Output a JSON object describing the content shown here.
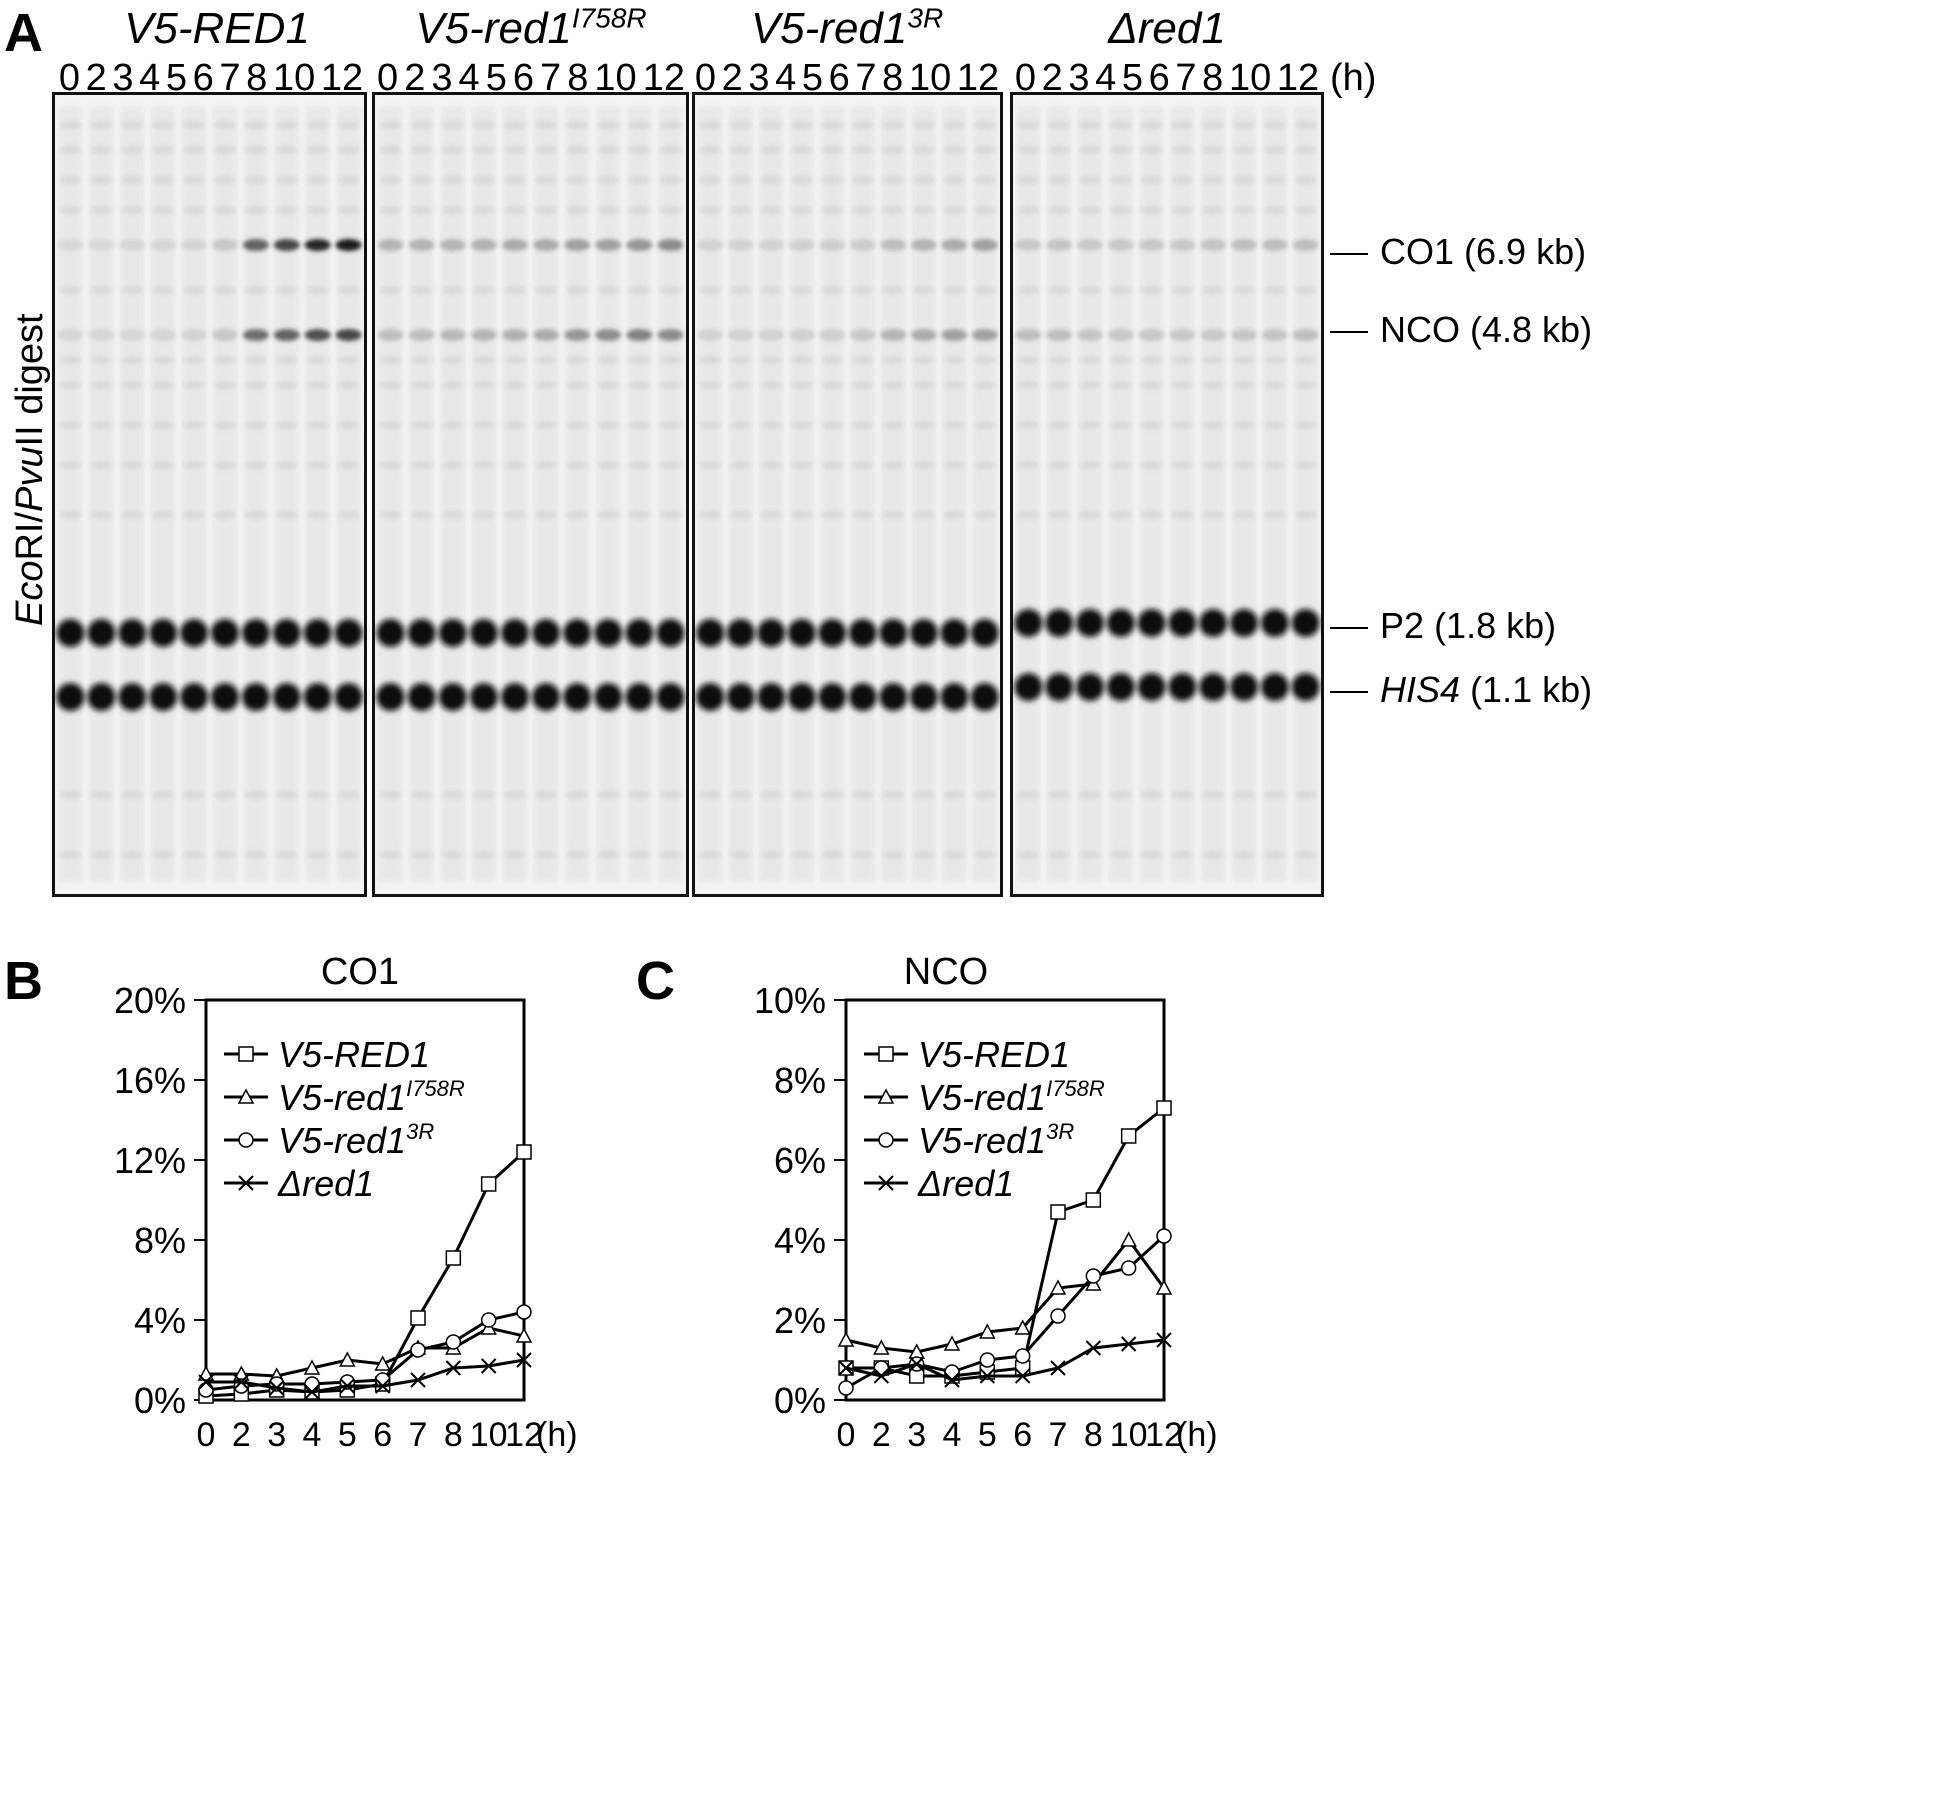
{
  "panel_a": {
    "letter": "A",
    "strains": [
      {
        "base": "V5-RED1",
        "sup": ""
      },
      {
        "base": "V5-red1",
        "sup": "I758R"
      },
      {
        "base": "V5-red1",
        "sup": "3R"
      },
      {
        "base": "Δred1",
        "sup": ""
      }
    ],
    "lanes": [
      "0",
      "2",
      "3",
      "4",
      "5",
      "6",
      "7",
      "8",
      "10",
      "12"
    ],
    "time_unit": "(h)",
    "side_label": {
      "part1": "Eco",
      "part2": "RI/",
      "part3": "Pvu",
      "part4": "II digest"
    },
    "bands": [
      {
        "name": "CO1",
        "size": "(6.9 kb)",
        "italic": false
      },
      {
        "name": "NCO",
        "size": "(4.8 kb)",
        "italic": false
      },
      {
        "name": "P2",
        "size": "(1.8 kb)",
        "italic": false
      },
      {
        "name": "HIS4",
        "size": "(1.1 kb)",
        "italic": true
      }
    ],
    "gel_intensity": {
      "co1": [
        [
          0.02,
          0.02,
          0.03,
          0.03,
          0.04,
          0.1,
          0.6,
          0.75,
          0.9,
          0.95
        ],
        [
          0.2,
          0.2,
          0.2,
          0.22,
          0.25,
          0.25,
          0.3,
          0.3,
          0.35,
          0.4
        ],
        [
          0.05,
          0.05,
          0.05,
          0.06,
          0.07,
          0.08,
          0.15,
          0.2,
          0.25,
          0.3
        ],
        [
          0.1,
          0.12,
          0.1,
          0.1,
          0.1,
          0.1,
          0.12,
          0.15,
          0.15,
          0.15
        ]
      ],
      "nco": [
        [
          0.03,
          0.03,
          0.03,
          0.04,
          0.05,
          0.1,
          0.55,
          0.6,
          0.7,
          0.75
        ],
        [
          0.15,
          0.15,
          0.18,
          0.2,
          0.22,
          0.25,
          0.35,
          0.4,
          0.45,
          0.4
        ],
        [
          0.05,
          0.05,
          0.05,
          0.06,
          0.07,
          0.1,
          0.2,
          0.25,
          0.3,
          0.3
        ],
        [
          0.15,
          0.15,
          0.12,
          0.1,
          0.1,
          0.1,
          0.1,
          0.12,
          0.12,
          0.15
        ]
      ]
    }
  },
  "panel_b": {
    "letter": "B",
    "title": "CO1",
    "y_ticks": [
      "20%",
      "16%",
      "12%",
      "8%",
      "4%",
      "0%"
    ],
    "x_ticks": [
      "0",
      "2",
      "3",
      "4",
      "5",
      "6",
      "7",
      "8",
      "10",
      "12"
    ],
    "x_unit": "(h)"
  },
  "panel_c": {
    "letter": "C",
    "title": "NCO",
    "y_ticks": [
      "10%",
      "8%",
      "6%",
      "4%",
      "2%",
      "0%"
    ],
    "x_ticks": [
      "0",
      "2",
      "3",
      "4",
      "5",
      "6",
      "7",
      "8",
      "10",
      "12"
    ],
    "x_unit": "(h)"
  },
  "chart_data": [
    {
      "type": "line",
      "title": "CO1",
      "xlabel": "(h)",
      "ylabel": "",
      "x": [
        0,
        2,
        3,
        4,
        5,
        6,
        7,
        8,
        10,
        12
      ],
      "ylim": [
        0,
        20
      ],
      "y_unit": "%",
      "legend_position": "top-left",
      "series": [
        {
          "name": "V5-RED1",
          "marker": "square",
          "values": [
            0.2,
            0.3,
            0.5,
            0.4,
            0.5,
            0.8,
            4.1,
            7.1,
            10.8,
            12.4
          ]
        },
        {
          "name": "V5-red1 I758R",
          "marker": "triangle",
          "values": [
            1.3,
            1.3,
            1.2,
            1.6,
            2.0,
            1.8,
            2.6,
            2.6,
            3.6,
            3.2
          ]
        },
        {
          "name": "V5-red1 3R",
          "marker": "circle",
          "values": [
            0.5,
            0.7,
            0.8,
            0.8,
            0.9,
            1.0,
            2.5,
            2.9,
            4.0,
            4.4
          ]
        },
        {
          "name": "Δred1",
          "marker": "x",
          "values": [
            0.9,
            0.9,
            0.6,
            0.4,
            0.7,
            0.7,
            1.0,
            1.6,
            1.7,
            2.0
          ]
        }
      ]
    },
    {
      "type": "line",
      "title": "NCO",
      "xlabel": "(h)",
      "ylabel": "",
      "x": [
        0,
        2,
        3,
        4,
        5,
        6,
        7,
        8,
        10,
        12
      ],
      "ylim": [
        0,
        10
      ],
      "y_unit": "%",
      "legend_position": "top-left",
      "series": [
        {
          "name": "V5-RED1",
          "marker": "square",
          "values": [
            0.8,
            0.8,
            0.6,
            0.6,
            0.7,
            0.8,
            4.7,
            5.0,
            6.6,
            7.3
          ]
        },
        {
          "name": "V5-red1 I758R",
          "marker": "triangle",
          "values": [
            1.5,
            1.3,
            1.2,
            1.4,
            1.7,
            1.8,
            2.8,
            2.9,
            4.0,
            2.8
          ]
        },
        {
          "name": "V5-red1 3R",
          "marker": "circle",
          "values": [
            0.3,
            0.8,
            0.9,
            0.7,
            1.0,
            1.1,
            2.1,
            3.1,
            3.3,
            4.1
          ]
        },
        {
          "name": "Δred1",
          "marker": "x",
          "values": [
            0.8,
            0.6,
            0.9,
            0.5,
            0.6,
            0.6,
            0.8,
            1.3,
            1.4,
            1.5
          ]
        }
      ]
    }
  ]
}
